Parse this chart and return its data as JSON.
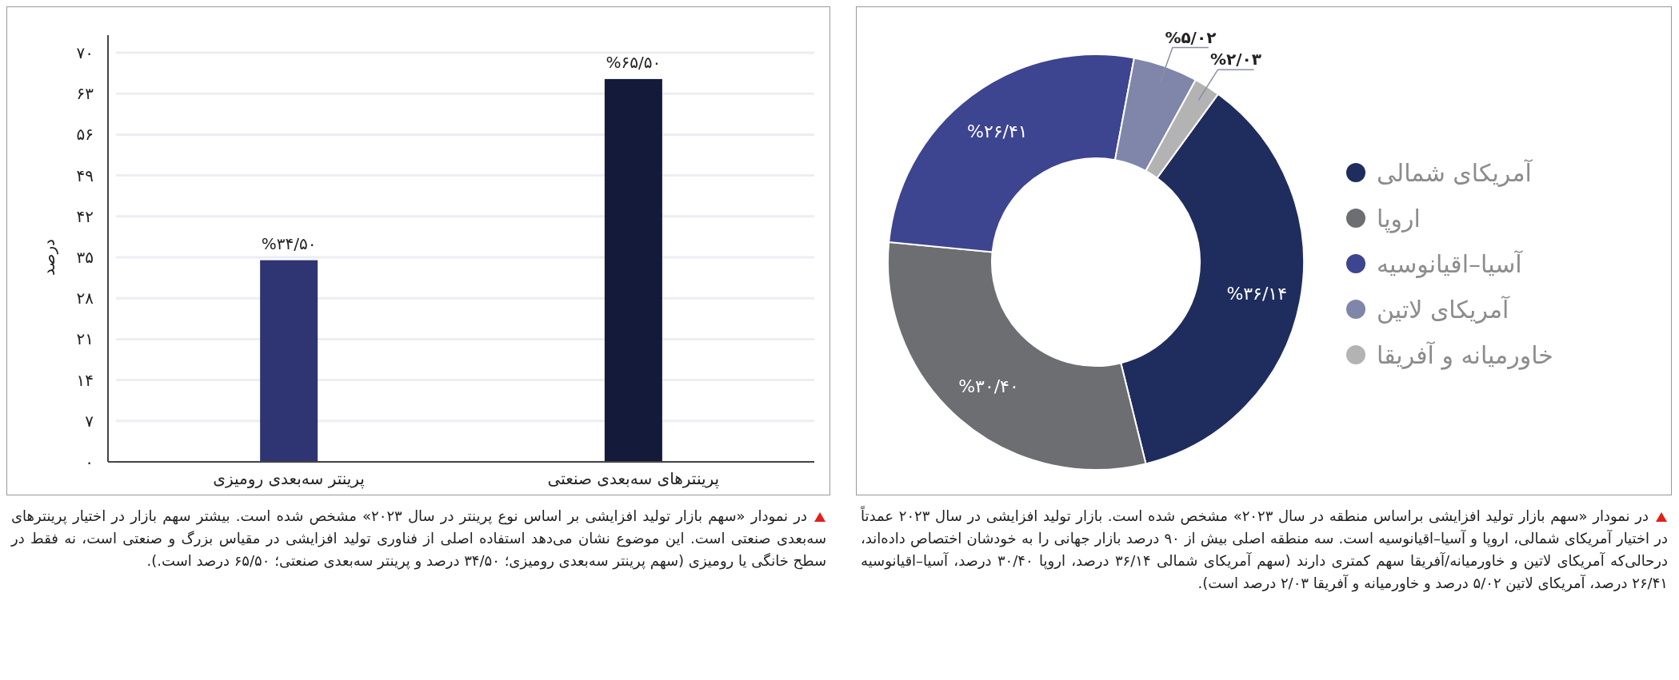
{
  "chart_data": [
    {
      "type": "donut",
      "categories": [
        "آمریکای شمالی",
        "اروپا",
        "آسیا–اقیانوسیه",
        "آمریکای لاتین",
        "خاورمیانه و آفریقا"
      ],
      "values": [
        36.14,
        30.4,
        26.41,
        5.02,
        2.03
      ],
      "colors": [
        "#1f2d5e",
        "#6c6e72",
        "#3d4490",
        "#7f86aa",
        "#b3b3b3"
      ],
      "value_labels": [
        "%۳۶/۱۴",
        "%۳۰/۴۰",
        "%۲۶/۴۱",
        "%۵/۰۲",
        "%۲/۰۳"
      ],
      "legend": "right",
      "annotations": [
        "در نمودار «سهم بازار تولید افزایشی براساس منطقه در سال ۲۰۲۳» مشخص شده است. بازار تولید افزایشی در سال ۲۰۲۳ عمدتاً در اختیار آمریکای شمالی، اروپا و آسیا–اقیانوسیه است. سه منطقه اصلی بیش از ۹۰ درصد بازار جهانی را به خودشان اختصاص داده‌اند، درحالی‌که آمریکای لاتین و خاورمیانه/آفریقا سهم کمتری دارند (سهم آمریکای شمالی ۳۶/۱۴ درصد، اروپا ۳۰/۴۰ درصد، آسیا–اقیانوسیه ۲۶/۴۱ درصد، آمریکای لاتین ۵/۰۲ درصد و خاورمیانه و آفریقا ۲/۰۳ درصد است)."
      ]
    },
    {
      "type": "bar",
      "categories": [
        "پرینتر سه‌بعدی رومیزی",
        "پرینترهای سه‌بعدی صنعتی"
      ],
      "values": [
        34.5,
        65.5
      ],
      "colors": [
        "#2e3572",
        "#141a3a"
      ],
      "value_labels": [
        "%۳۴/۵۰",
        "%۶۵/۵۰"
      ],
      "ylabel": "درصد",
      "ylim": [
        0,
        70
      ],
      "yticks": [
        {
          "value": 0,
          "label": "۰"
        },
        {
          "value": 7,
          "label": "۷"
        },
        {
          "value": 14,
          "label": "۱۴"
        },
        {
          "value": 21,
          "label": "۲۱"
        },
        {
          "value": 28,
          "label": "۲۸"
        },
        {
          "value": 35,
          "label": "۳۵"
        },
        {
          "value": 42,
          "label": "۴۲"
        },
        {
          "value": 49,
          "label": "۴۹"
        },
        {
          "value": 56,
          "label": "۵۶"
        },
        {
          "value": 63,
          "label": "۶۳"
        },
        {
          "value": 70,
          "label": "۷۰"
        }
      ],
      "grid": "y",
      "annotations": [
        "در نمودار «سهم بازار تولید افزایشی بر اساس نوع پرینتر در سال ۲۰۲۳» مشخص شده است. بیشتر سهم بازار در اختیار پرینترهای سه‌بعدی صنعتی است. این موضوع نشان می‌دهد استفاده اصلی از فناوری تولید افزایشی در مقیاس بزرگ و صنعتی است، نه فقط در سطح خانگی یا رومیزی (سهم پرینتر سه‌بعدی رومیزی؛ ۳۴/۵۰ درصد و پرینتر سه‌بعدی صنعتی؛ ۶۵/۵۰ درصد است.)."
      ]
    }
  ]
}
